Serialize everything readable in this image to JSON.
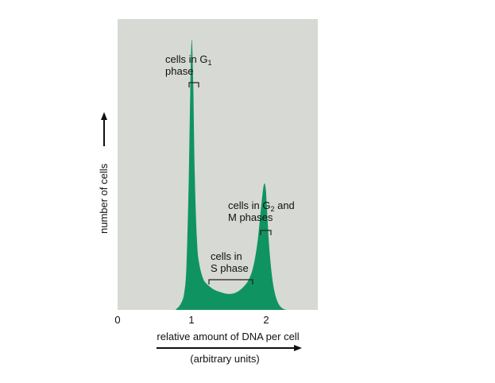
{
  "chart_data": {
    "type": "area",
    "title": "",
    "xlabel": "relative amount of DNA per cell",
    "xlabel_units": "(arbitrary units)",
    "ylabel": "number of cells",
    "xlim": [
      0,
      2.7
    ],
    "ylim": [
      0,
      1.0
    ],
    "x_ticks": [
      "0",
      "1",
      "2"
    ],
    "grid": false,
    "colors": {
      "plot_background": "#d6d9d4",
      "fill": "#0f9461",
      "text": "#111111"
    },
    "series": [
      {
        "x": [
          0.78,
          0.85,
          0.9,
          0.93,
          0.96,
          0.98,
          1.0,
          1.02,
          1.04,
          1.07,
          1.1,
          1.15,
          1.2,
          1.3,
          1.4,
          1.5,
          1.6,
          1.7,
          1.78,
          1.84,
          1.89,
          1.93,
          1.96,
          1.98,
          2.0,
          2.02,
          2.05,
          2.09,
          2.14,
          2.2,
          2.27
        ],
        "values": [
          0.0,
          0.02,
          0.06,
          0.16,
          0.45,
          0.75,
          0.93,
          0.78,
          0.47,
          0.24,
          0.16,
          0.11,
          0.09,
          0.07,
          0.06,
          0.055,
          0.06,
          0.08,
          0.11,
          0.16,
          0.24,
          0.34,
          0.41,
          0.435,
          0.41,
          0.32,
          0.2,
          0.1,
          0.04,
          0.01,
          0.0
        ]
      }
    ],
    "annotations": [
      {
        "id": "g1",
        "text_prefix": "cells in G",
        "sub": "1",
        "line2": "phase",
        "x_from": 0.97,
        "x_to": 1.07
      },
      {
        "id": "s",
        "line1": "cells in",
        "line2": "S phase",
        "x_from": 1.23,
        "x_to": 1.8
      },
      {
        "id": "g2m",
        "text_prefix": "cells in G",
        "sub": "2",
        "text_suffix": " and",
        "line2": "M phases",
        "x_from": 1.93,
        "x_to": 2.06
      }
    ]
  }
}
